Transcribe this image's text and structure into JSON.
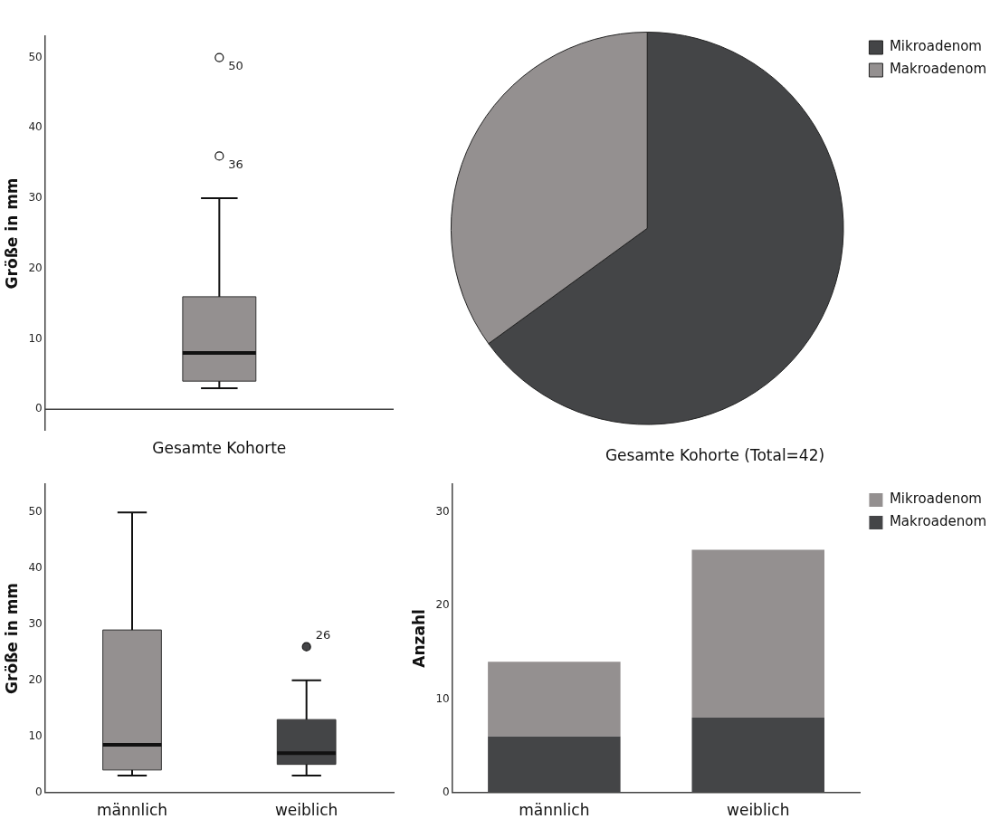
{
  "chart_data": [
    {
      "type": "box",
      "ylabel": "Größe in mm",
      "categories": [
        "Gesamte Kohorte"
      ],
      "colors": [
        "#949090"
      ],
      "boxes": [
        {
          "low": 3,
          "q1": 4,
          "median": 8,
          "q3": 16,
          "high": 30,
          "outliers": [
            36,
            50
          ]
        }
      ],
      "ylim": [
        -3,
        53
      ],
      "yticks": [
        0,
        10,
        20,
        30,
        40,
        50
      ],
      "marker": "circle",
      "ref_lines": [
        {
          "axis": "y",
          "value": 0
        }
      ],
      "annotations": [
        "36",
        "50"
      ]
    },
    {
      "type": "pie",
      "title": "Gesamte Kohorte (Total=42)",
      "categories": [
        "Mikroadenom",
        "Makroadenom"
      ],
      "values": [
        65,
        35
      ],
      "colors": [
        "#444547",
        "#949090"
      ],
      "legend": "top right"
    },
    {
      "type": "box",
      "ylabel": "Größe in mm",
      "categories": [
        "männlich",
        "weiblich"
      ],
      "colors": [
        "#949090",
        "#444547"
      ],
      "boxes": [
        {
          "low": 3,
          "q1": 4,
          "median": 8.5,
          "q3": 29,
          "high": 50
        },
        {
          "low": 3,
          "q1": 5,
          "median": 7,
          "q3": 13,
          "high": 20,
          "outliers": [
            26
          ]
        }
      ],
      "ylim": [
        0,
        55
      ],
      "yticks": [
        0,
        10,
        20,
        30,
        40,
        50
      ],
      "marker": "circle",
      "annotations": [
        "26"
      ]
    },
    {
      "type": "bar",
      "stacked": true,
      "ylabel": "Anzahl",
      "categories": [
        "männlich",
        "weiblich"
      ],
      "legend": "top right",
      "series": [
        {
          "name": "Makroadenom",
          "color": "#444547",
          "values": [
            6,
            8
          ]
        },
        {
          "name": "Mikroadenom",
          "color": "#949090",
          "values": [
            8,
            18
          ]
        }
      ],
      "ylim": [
        0,
        33
      ],
      "yticks": [
        0,
        10,
        20,
        30
      ]
    }
  ]
}
